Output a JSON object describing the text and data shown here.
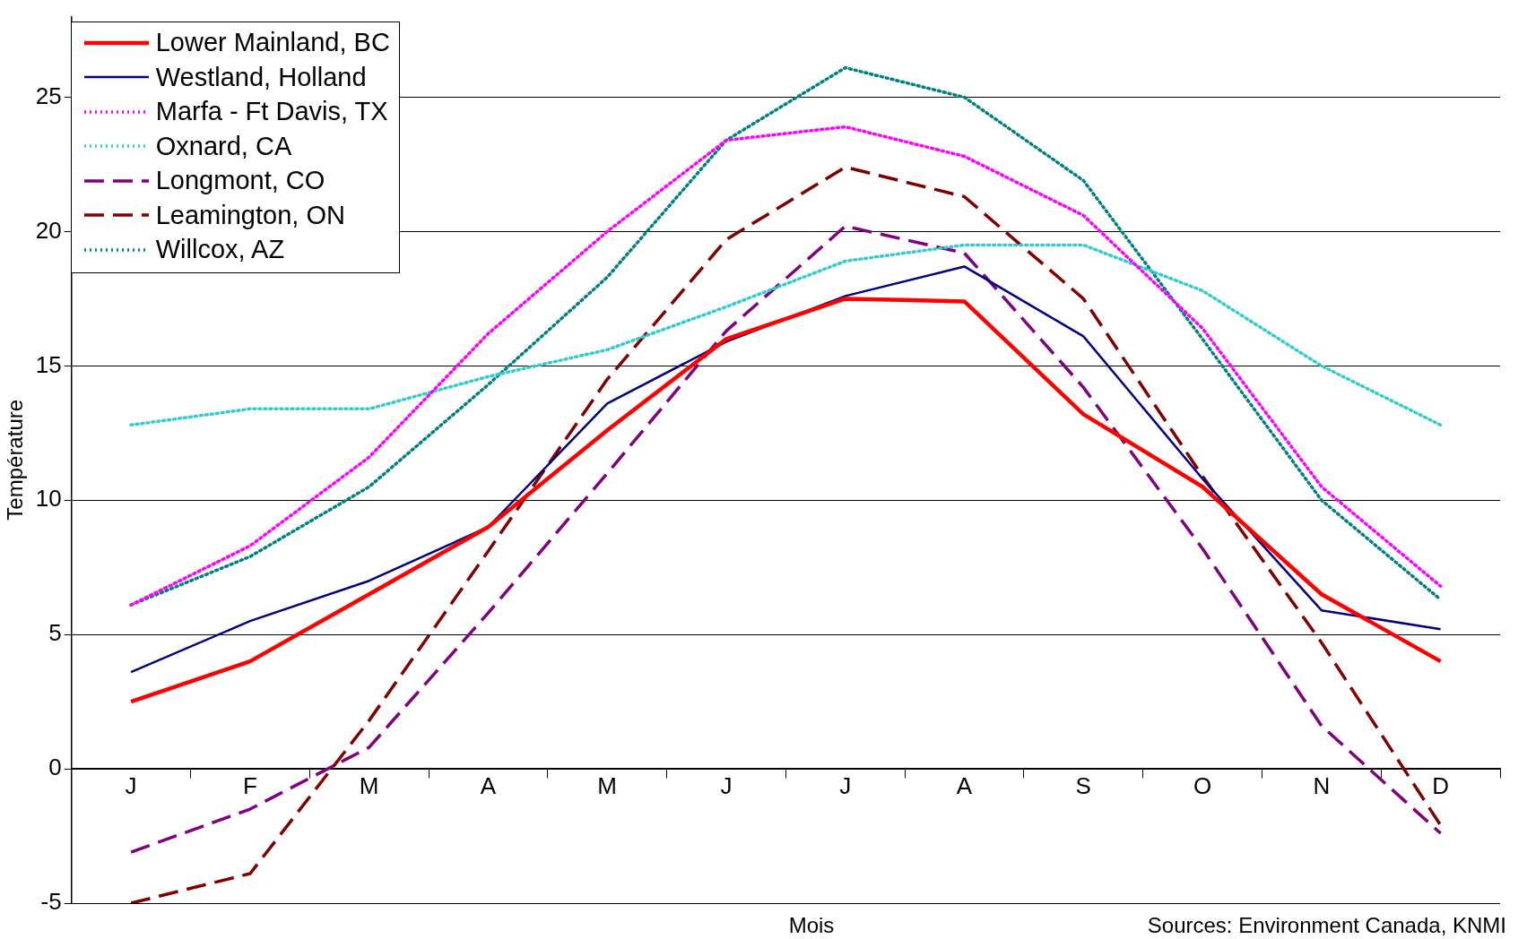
{
  "chart_data": {
    "type": "line",
    "xlabel": "Mois",
    "ylabel": "Température",
    "categories": [
      "J",
      "F",
      "M",
      "A",
      "M",
      "J",
      "J",
      "A",
      "S",
      "O",
      "N",
      "D"
    ],
    "ylim": [
      -5,
      28
    ],
    "yticks": [
      -5,
      0,
      5,
      10,
      15,
      20,
      25
    ],
    "grid": "y",
    "legend": "top left",
    "marker": "none",
    "series": [
      {
        "name": "Lower Mainland, BC",
        "color": "#ff0000",
        "line_style": "solid",
        "values": [
          2.5,
          4.0,
          6.5,
          9.0,
          12.6,
          16.0,
          17.5,
          17.4,
          13.2,
          10.5,
          6.5,
          4.0
        ]
      },
      {
        "name": "Westland, Holland",
        "color": "#000080",
        "line_style": "solid",
        "values": [
          3.6,
          5.5,
          7.0,
          9.0,
          13.6,
          15.9,
          17.6,
          18.7,
          16.1,
          10.8,
          5.9,
          5.2
        ]
      },
      {
        "name": "Marfa - Ft Davis, TX",
        "color": "#ff00ff",
        "line_style": "dotted",
        "values": [
          6.1,
          8.3,
          11.6,
          16.2,
          20.0,
          23.4,
          23.9,
          22.8,
          20.6,
          16.4,
          10.5,
          6.8
        ]
      },
      {
        "name": "Oxnard, CA",
        "color": "#33cccc",
        "line_style": "dotted",
        "values": [
          12.8,
          13.4,
          13.4,
          14.6,
          15.6,
          17.2,
          18.9,
          19.5,
          19.5,
          17.8,
          15.0,
          12.8
        ]
      },
      {
        "name": "Longmont, CO",
        "color": "#800080",
        "line_style": "dashed",
        "values": [
          -3.1,
          -1.5,
          0.8,
          5.8,
          11.0,
          16.3,
          20.2,
          19.2,
          14.2,
          8.2,
          1.6,
          -2.4
        ]
      },
      {
        "name": "Leamington, ON",
        "color": "#800000",
        "line_style": "dashed",
        "values": [
          -5.0,
          -3.9,
          1.8,
          8.1,
          14.5,
          19.7,
          22.4,
          21.3,
          17.5,
          10.9,
          4.7,
          -2.1
        ]
      },
      {
        "name": "Willcox, AZ",
        "color": "#008080",
        "line_style": "dotted",
        "values": [
          6.1,
          7.9,
          10.5,
          14.3,
          18.3,
          23.4,
          26.1,
          25.0,
          21.9,
          16.0,
          10.0,
          6.3
        ]
      }
    ],
    "annotations": [
      "Sources: Environment Canada, KNMI"
    ]
  }
}
